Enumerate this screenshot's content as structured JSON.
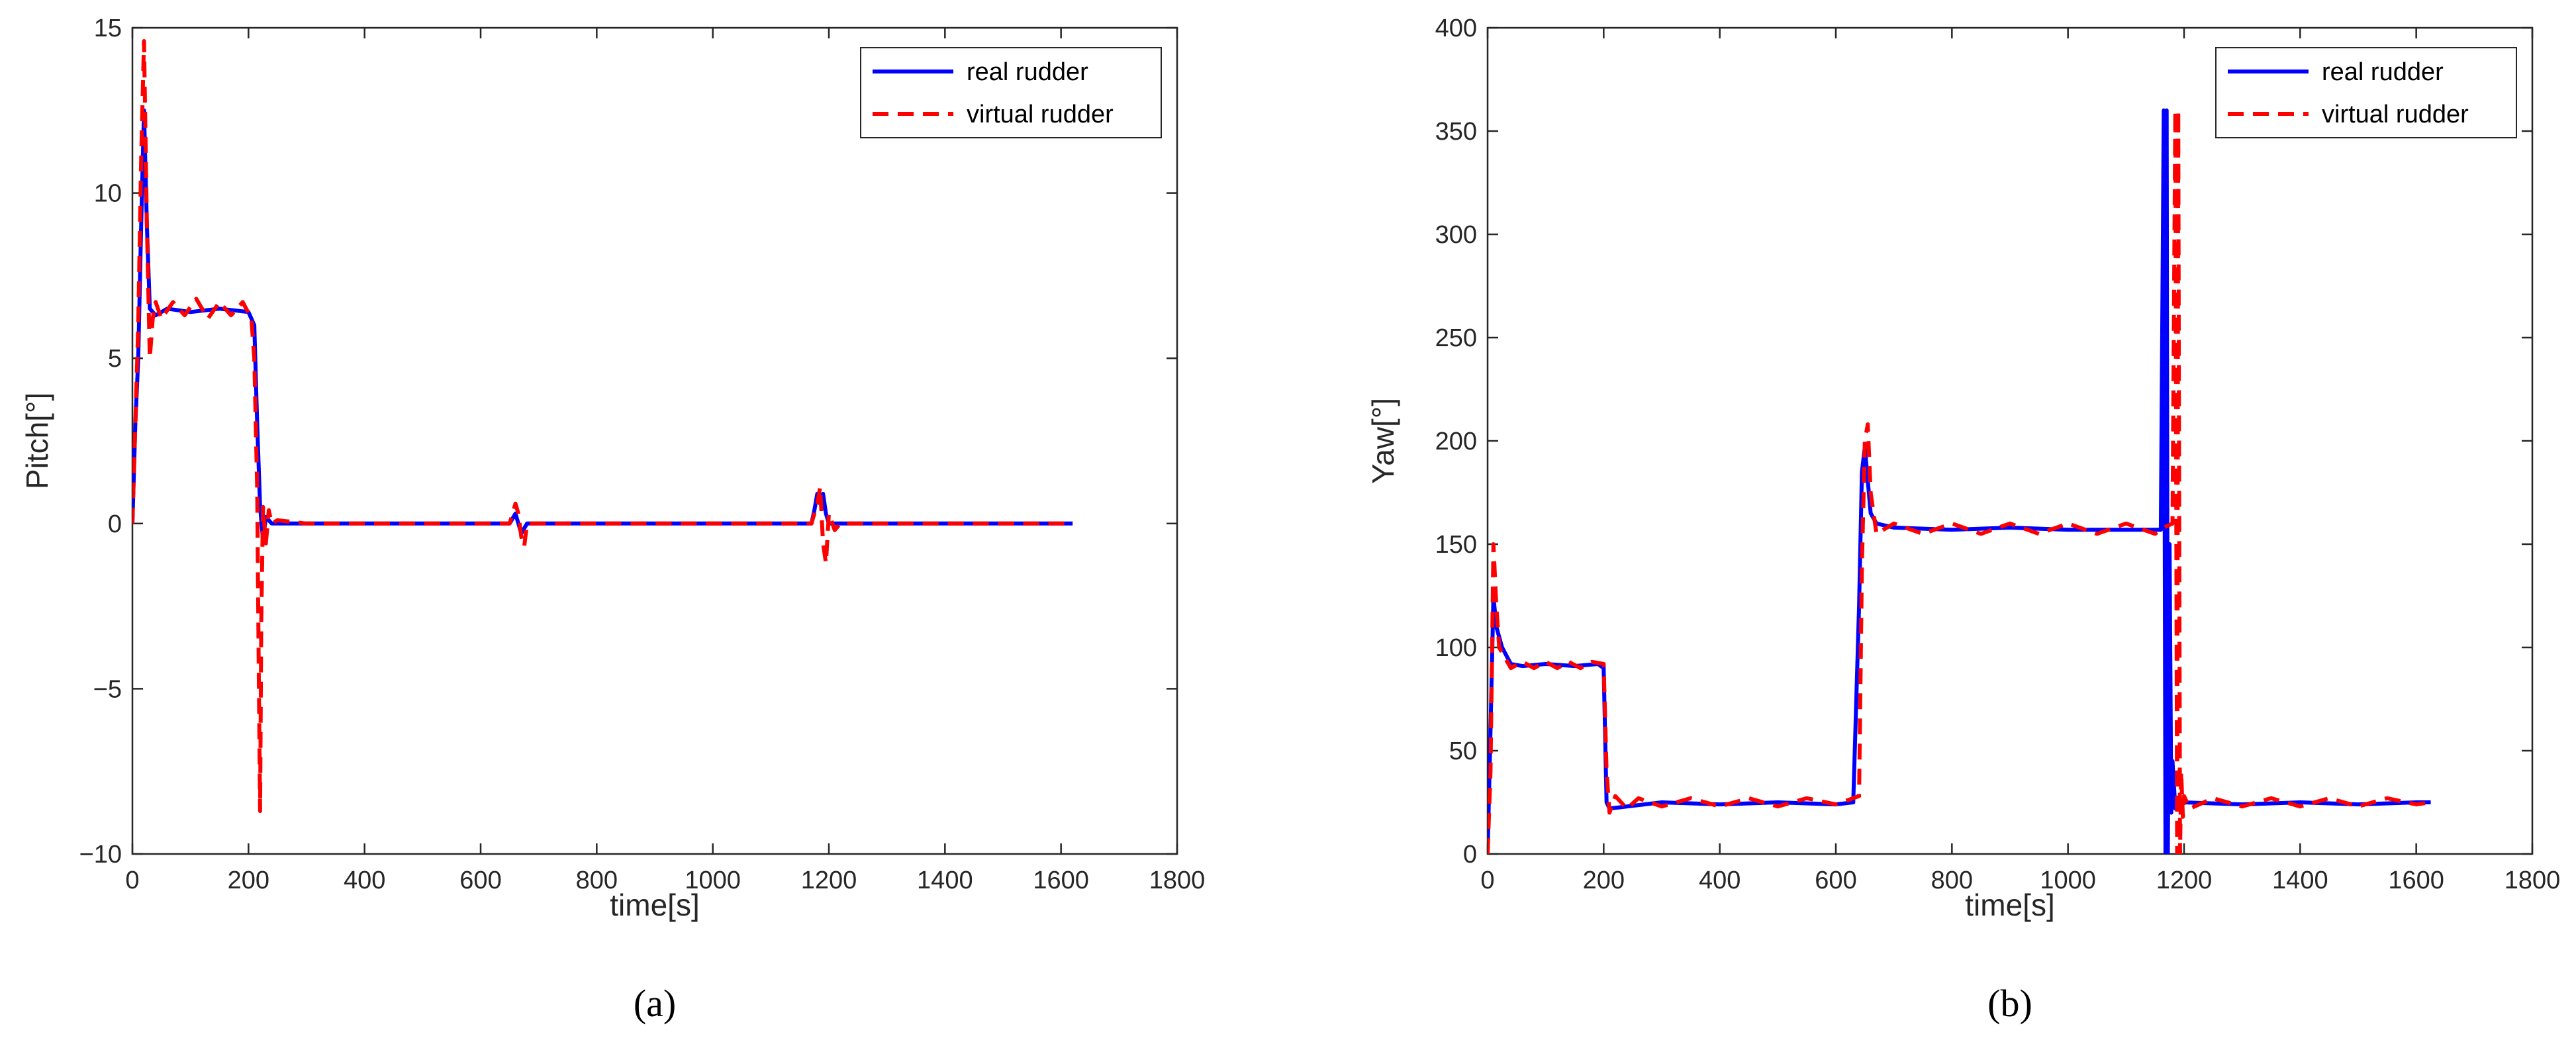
{
  "chart_data": [
    {
      "type": "line",
      "panel": "a",
      "xlabel": "time[s]",
      "ylabel": "Pitch[°]",
      "xlim": [
        0,
        1800
      ],
      "ylim": [
        -10,
        15
      ],
      "xticks": [
        0,
        200,
        400,
        600,
        800,
        1000,
        1200,
        1400,
        1600,
        1800
      ],
      "yticks": [
        -10,
        -5,
        0,
        5,
        10,
        15
      ],
      "grid": false,
      "legend_position": "top-right",
      "series": [
        {
          "name": "real rudder",
          "color": "#0000ff",
          "style": "solid",
          "x": [
            0,
            5,
            10,
            15,
            20,
            25,
            30,
            40,
            60,
            100,
            150,
            200,
            210,
            215,
            220,
            225,
            230,
            240,
            260,
            400,
            600,
            650,
            660,
            670,
            680,
            700,
            900,
            1100,
            1170,
            1175,
            1180,
            1185,
            1190,
            1195,
            1200,
            1210,
            1400,
            1620
          ],
          "y": [
            0,
            3,
            5,
            9,
            12.5,
            9,
            6.5,
            6.3,
            6.5,
            6.4,
            6.5,
            6.4,
            6,
            3,
            0.5,
            -0.5,
            0.2,
            0,
            0,
            0,
            0,
            0,
            0.3,
            -0.3,
            0,
            0,
            0,
            0,
            0,
            0.4,
            0.9,
            0.6,
            0.9,
            0.3,
            0,
            0,
            0,
            0
          ]
        },
        {
          "name": "virtual rudder",
          "color": "#ff0000",
          "style": "dashed",
          "x": [
            0,
            5,
            10,
            15,
            20,
            25,
            30,
            35,
            40,
            50,
            70,
            90,
            110,
            130,
            150,
            170,
            190,
            205,
            210,
            215,
            218,
            220,
            222,
            225,
            230,
            235,
            240,
            250,
            300,
            400,
            500,
            600,
            650,
            660,
            665,
            670,
            675,
            680,
            700,
            900,
            1100,
            1170,
            1180,
            1185,
            1190,
            1195,
            1200,
            1210,
            1220,
            1400,
            1620
          ],
          "y": [
            0,
            3,
            6,
            11,
            14.6,
            9,
            5,
            6.2,
            6.7,
            6.2,
            6.7,
            6.3,
            6.8,
            6.2,
            6.7,
            6.3,
            6.7,
            6.2,
            5,
            1,
            -5,
            -8.7,
            -3,
            0.5,
            -0.6,
            0.4,
            0,
            0.1,
            0,
            0,
            0,
            0,
            0,
            0.6,
            0.3,
            -0.4,
            -0.7,
            0,
            0,
            0,
            0,
            0,
            0.6,
            1.1,
            -0.6,
            -1.2,
            0.3,
            -0.2,
            0,
            0,
            0
          ]
        }
      ]
    },
    {
      "type": "line",
      "panel": "b",
      "xlabel": "time[s]",
      "ylabel": "Yaw[°]",
      "xlim": [
        0,
        1800
      ],
      "ylim": [
        0,
        400
      ],
      "xticks": [
        0,
        200,
        400,
        600,
        800,
        1000,
        1200,
        1400,
        1600,
        1800
      ],
      "yticks": [
        0,
        50,
        100,
        150,
        200,
        250,
        300,
        350,
        400
      ],
      "grid": false,
      "legend_position": "top-right",
      "series": [
        {
          "name": "real rudder",
          "color": "#0000ff",
          "style": "solid",
          "x": [
            0,
            5,
            10,
            15,
            25,
            40,
            60,
            100,
            150,
            190,
            200,
            205,
            210,
            300,
            400,
            500,
            600,
            630,
            640,
            645,
            650,
            660,
            670,
            700,
            800,
            900,
            1000,
            1100,
            1160,
            1165,
            1168,
            1170,
            1172,
            1175,
            1178,
            1180,
            1185,
            1190,
            1200,
            1300,
            1400,
            1500,
            1600,
            1625
          ],
          "y": [
            0,
            60,
            125,
            110,
            100,
            92,
            91,
            92,
            91,
            92,
            90,
            25,
            22,
            25,
            24,
            25,
            24,
            25,
            120,
            185,
            197,
            165,
            160,
            158,
            157,
            158,
            157,
            157,
            157,
            360,
            0,
            360,
            0,
            150,
            20,
            45,
            22,
            25,
            25,
            24,
            25,
            24,
            25,
            25
          ]
        },
        {
          "name": "virtual rudder",
          "color": "#ff0000",
          "style": "dashed",
          "x": [
            0,
            5,
            10,
            15,
            20,
            30,
            40,
            60,
            80,
            100,
            120,
            140,
            160,
            180,
            200,
            205,
            210,
            220,
            240,
            260,
            300,
            350,
            400,
            450,
            500,
            550,
            600,
            640,
            645,
            650,
            655,
            660,
            670,
            700,
            750,
            800,
            850,
            900,
            950,
            1000,
            1050,
            1100,
            1150,
            1165,
            1180,
            1185,
            1188,
            1190,
            1193,
            1195,
            1198,
            1200,
            1210,
            1250,
            1300,
            1350,
            1400,
            1450,
            1500,
            1550,
            1600,
            1625
          ],
          "y": [
            0,
            40,
            150,
            120,
            100,
            95,
            90,
            93,
            90,
            93,
            90,
            93,
            90,
            93,
            92,
            40,
            20,
            28,
            22,
            27,
            23,
            27,
            23,
            27,
            23,
            27,
            24,
            28,
            140,
            200,
            208,
            175,
            155,
            160,
            155,
            160,
            155,
            160,
            155,
            160,
            155,
            160,
            155,
            158,
            160,
            360,
            0,
            360,
            0,
            40,
            18,
            28,
            22,
            27,
            23,
            27,
            23,
            27,
            23,
            27,
            24,
            25
          ]
        }
      ]
    }
  ],
  "panel_labels": {
    "a": "(a)",
    "b": "(b)"
  }
}
